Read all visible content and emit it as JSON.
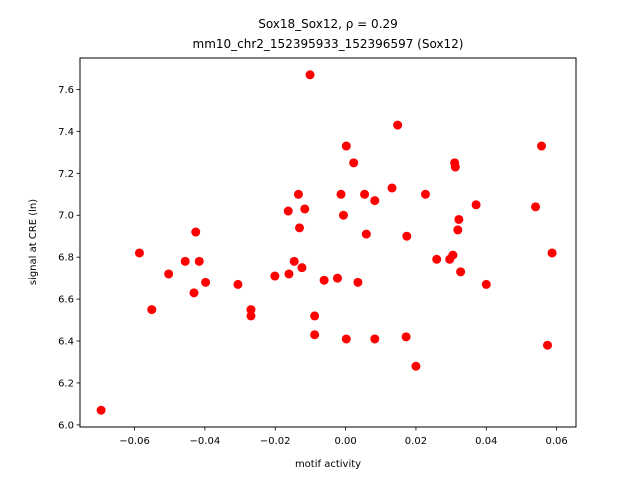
{
  "chart_data": {
    "type": "scatter",
    "title_line1": "Sox18_Sox12, ρ = 0.29",
    "title_line2": "mm10_chr2_152395933_152396597 (Sox12)",
    "xlabel": "motif activity",
    "ylabel": "signal at CRE (ln)",
    "xlim": [
      -0.0755,
      0.0655
    ],
    "ylim": [
      5.99,
      7.75
    ],
    "xticks": [
      -0.06,
      -0.04,
      -0.02,
      0.0,
      0.02,
      0.04,
      0.06
    ],
    "xtick_labels": [
      "−0.06",
      "−0.04",
      "−0.02",
      "0.00",
      "0.02",
      "0.04",
      "0.06"
    ],
    "yticks": [
      6.0,
      6.2,
      6.4,
      6.6,
      6.8,
      7.0,
      7.2,
      7.4,
      7.6
    ],
    "ytick_labels": [
      "6.0",
      "6.2",
      "6.4",
      "6.6",
      "6.8",
      "7.0",
      "7.2",
      "7.4",
      "7.6"
    ],
    "grid": false,
    "legend": "none",
    "marker_color": "#ff0000",
    "points": [
      {
        "x": -0.0695,
        "y": 6.07
      },
      {
        "x": -0.0586,
        "y": 6.82
      },
      {
        "x": -0.0551,
        "y": 6.55
      },
      {
        "x": -0.0503,
        "y": 6.72
      },
      {
        "x": -0.0456,
        "y": 6.78
      },
      {
        "x": -0.0431,
        "y": 6.63
      },
      {
        "x": -0.0426,
        "y": 6.92
      },
      {
        "x": -0.0416,
        "y": 6.78
      },
      {
        "x": -0.0398,
        "y": 6.68
      },
      {
        "x": -0.0306,
        "y": 6.67
      },
      {
        "x": -0.0269,
        "y": 6.55
      },
      {
        "x": -0.0269,
        "y": 6.52
      },
      {
        "x": -0.0201,
        "y": 6.71
      },
      {
        "x": -0.0163,
        "y": 7.02
      },
      {
        "x": -0.0161,
        "y": 6.72
      },
      {
        "x": -0.0146,
        "y": 6.78
      },
      {
        "x": -0.0134,
        "y": 7.1
      },
      {
        "x": -0.0131,
        "y": 6.94
      },
      {
        "x": -0.0124,
        "y": 6.75
      },
      {
        "x": -0.0116,
        "y": 7.03
      },
      {
        "x": -0.0101,
        "y": 7.67
      },
      {
        "x": -0.0088,
        "y": 6.52
      },
      {
        "x": -0.0088,
        "y": 6.43
      },
      {
        "x": -0.0061,
        "y": 6.69
      },
      {
        "x": -0.0023,
        "y": 6.7
      },
      {
        "x": -0.0013,
        "y": 7.1
      },
      {
        "x": -0.0006,
        "y": 7.0
      },
      {
        "x": 0.0002,
        "y": 7.33
      },
      {
        "x": 0.0002,
        "y": 6.41
      },
      {
        "x": 0.0023,
        "y": 7.25
      },
      {
        "x": 0.0035,
        "y": 6.68
      },
      {
        "x": 0.0054,
        "y": 7.1
      },
      {
        "x": 0.0059,
        "y": 6.91
      },
      {
        "x": 0.0083,
        "y": 7.07
      },
      {
        "x": 0.0083,
        "y": 6.41
      },
      {
        "x": 0.0132,
        "y": 7.13
      },
      {
        "x": 0.0148,
        "y": 7.43
      },
      {
        "x": 0.0172,
        "y": 6.42
      },
      {
        "x": 0.0174,
        "y": 6.9
      },
      {
        "x": 0.02,
        "y": 6.28
      },
      {
        "x": 0.0227,
        "y": 7.1
      },
      {
        "x": 0.0259,
        "y": 6.79
      },
      {
        "x": 0.0296,
        "y": 6.79
      },
      {
        "x": 0.0305,
        "y": 6.81
      },
      {
        "x": 0.031,
        "y": 7.25
      },
      {
        "x": 0.0312,
        "y": 7.23
      },
      {
        "x": 0.0319,
        "y": 6.93
      },
      {
        "x": 0.0322,
        "y": 6.98
      },
      {
        "x": 0.0327,
        "y": 6.73
      },
      {
        "x": 0.0371,
        "y": 7.05
      },
      {
        "x": 0.04,
        "y": 6.67
      },
      {
        "x": 0.054,
        "y": 7.04
      },
      {
        "x": 0.0557,
        "y": 7.33
      },
      {
        "x": 0.0574,
        "y": 6.38
      },
      {
        "x": 0.0587,
        "y": 6.82
      }
    ]
  }
}
